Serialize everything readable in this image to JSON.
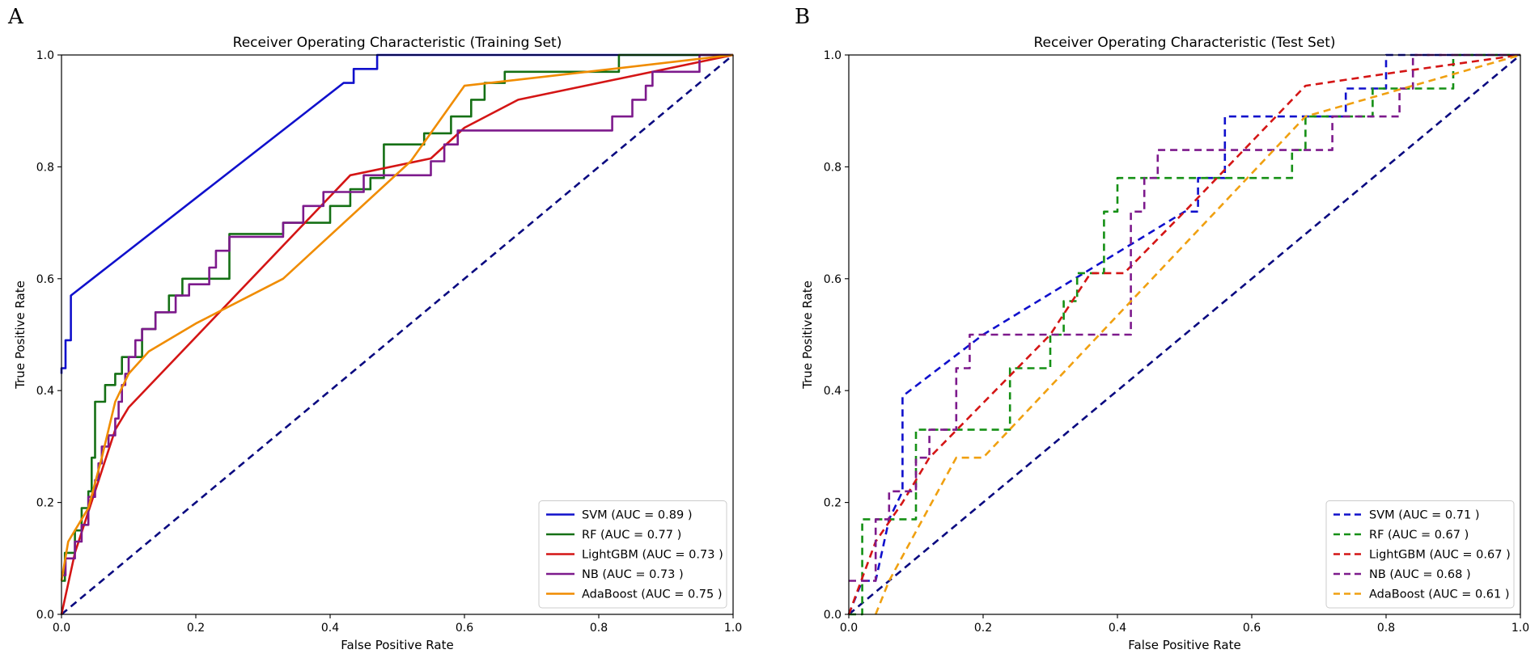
{
  "chart_data": [
    {
      "type": "line",
      "panel_label": "A",
      "title": "Receiver Operating Characteristic (Training Set)",
      "xlabel": "False Positive Rate",
      "ylabel": "True Positive Rate",
      "xlim": [
        0,
        1
      ],
      "ylim": [
        0,
        1
      ],
      "xticks": [
        "0.0",
        "0.2",
        "0.4",
        "0.6",
        "0.8",
        "1.0"
      ],
      "yticks": [
        "0.0",
        "0.2",
        "0.4",
        "0.6",
        "0.8",
        "1.0"
      ],
      "legend_position": "lower-right",
      "line_style": "solid",
      "diagonal": {
        "color": "#0a0a80",
        "style": "dashed"
      },
      "series": [
        {
          "name": "SVM",
          "label": "SVM (AUC = 0.89 )",
          "auc": 0.89,
          "color": "#1010cc",
          "points": [
            [
              0,
              0.43
            ],
            [
              0,
              0.44
            ],
            [
              0.006,
              0.44
            ],
            [
              0.006,
              0.49
            ],
            [
              0.014,
              0.49
            ],
            [
              0.014,
              0.57
            ],
            [
              0.42,
              0.95
            ],
            [
              0.435,
              0.95
            ],
            [
              0.435,
              0.975
            ],
            [
              0.47,
              0.975
            ],
            [
              0.47,
              1.0
            ],
            [
              1.0,
              1.0
            ]
          ]
        },
        {
          "name": "RF",
          "label": "RF (AUC = 0.77 )",
          "auc": 0.77,
          "color": "#157015",
          "points": [
            [
              0,
              0.06
            ],
            [
              0.005,
              0.06
            ],
            [
              0.005,
              0.11
            ],
            [
              0.02,
              0.11
            ],
            [
              0.02,
              0.15
            ],
            [
              0.03,
              0.15
            ],
            [
              0.03,
              0.19
            ],
            [
              0.04,
              0.19
            ],
            [
              0.04,
              0.22
            ],
            [
              0.045,
              0.22
            ],
            [
              0.045,
              0.28
            ],
            [
              0.05,
              0.28
            ],
            [
              0.05,
              0.38
            ],
            [
              0.065,
              0.38
            ],
            [
              0.065,
              0.41
            ],
            [
              0.08,
              0.41
            ],
            [
              0.08,
              0.43
            ],
            [
              0.09,
              0.43
            ],
            [
              0.09,
              0.46
            ],
            [
              0.12,
              0.46
            ],
            [
              0.12,
              0.51
            ],
            [
              0.14,
              0.51
            ],
            [
              0.14,
              0.54
            ],
            [
              0.16,
              0.54
            ],
            [
              0.16,
              0.57
            ],
            [
              0.18,
              0.57
            ],
            [
              0.18,
              0.6
            ],
            [
              0.25,
              0.6
            ],
            [
              0.25,
              0.68
            ],
            [
              0.33,
              0.68
            ],
            [
              0.33,
              0.7
            ],
            [
              0.4,
              0.7
            ],
            [
              0.4,
              0.73
            ],
            [
              0.43,
              0.73
            ],
            [
              0.43,
              0.76
            ],
            [
              0.46,
              0.76
            ],
            [
              0.46,
              0.78
            ],
            [
              0.48,
              0.78
            ],
            [
              0.48,
              0.84
            ],
            [
              0.54,
              0.84
            ],
            [
              0.54,
              0.86
            ],
            [
              0.58,
              0.86
            ],
            [
              0.58,
              0.89
            ],
            [
              0.61,
              0.89
            ],
            [
              0.61,
              0.92
            ],
            [
              0.63,
              0.92
            ],
            [
              0.63,
              0.95
            ],
            [
              0.66,
              0.95
            ],
            [
              0.66,
              0.97
            ],
            [
              0.83,
              0.97
            ],
            [
              0.83,
              1.0
            ],
            [
              1.0,
              1.0
            ]
          ]
        },
        {
          "name": "LightGBM",
          "label": "LightGBM (AUC = 0.73 )",
          "auc": 0.73,
          "color": "#d41515",
          "points": [
            [
              0,
              0
            ],
            [
              0.02,
              0.11
            ],
            [
              0.08,
              0.33
            ],
            [
              0.1,
              0.37
            ],
            [
              0.43,
              0.785
            ],
            [
              0.55,
              0.815
            ],
            [
              0.6,
              0.87
            ],
            [
              0.68,
              0.92
            ],
            [
              1.0,
              1.0
            ]
          ]
        },
        {
          "name": "NB",
          "label": "NB (AUC = 0.73 )",
          "auc": 0.73,
          "color": "#7d1a8c",
          "points": [
            [
              0,
              0.07
            ],
            [
              0.006,
              0.07
            ],
            [
              0.006,
              0.1
            ],
            [
              0.02,
              0.1
            ],
            [
              0.02,
              0.13
            ],
            [
              0.03,
              0.13
            ],
            [
              0.03,
              0.16
            ],
            [
              0.04,
              0.16
            ],
            [
              0.04,
              0.21
            ],
            [
              0.05,
              0.21
            ],
            [
              0.05,
              0.24
            ],
            [
              0.055,
              0.24
            ],
            [
              0.055,
              0.27
            ],
            [
              0.06,
              0.27
            ],
            [
              0.06,
              0.3
            ],
            [
              0.07,
              0.3
            ],
            [
              0.07,
              0.32
            ],
            [
              0.08,
              0.32
            ],
            [
              0.08,
              0.35
            ],
            [
              0.085,
              0.35
            ],
            [
              0.085,
              0.38
            ],
            [
              0.09,
              0.38
            ],
            [
              0.09,
              0.41
            ],
            [
              0.095,
              0.41
            ],
            [
              0.095,
              0.43
            ],
            [
              0.1,
              0.43
            ],
            [
              0.1,
              0.46
            ],
            [
              0.11,
              0.46
            ],
            [
              0.11,
              0.49
            ],
            [
              0.12,
              0.49
            ],
            [
              0.12,
              0.51
            ],
            [
              0.14,
              0.51
            ],
            [
              0.14,
              0.54
            ],
            [
              0.17,
              0.54
            ],
            [
              0.17,
              0.57
            ],
            [
              0.19,
              0.57
            ],
            [
              0.19,
              0.59
            ],
            [
              0.22,
              0.59
            ],
            [
              0.22,
              0.62
            ],
            [
              0.23,
              0.62
            ],
            [
              0.23,
              0.65
            ],
            [
              0.25,
              0.65
            ],
            [
              0.25,
              0.675
            ],
            [
              0.33,
              0.675
            ],
            [
              0.33,
              0.7
            ],
            [
              0.36,
              0.7
            ],
            [
              0.36,
              0.73
            ],
            [
              0.39,
              0.73
            ],
            [
              0.39,
              0.755
            ],
            [
              0.45,
              0.755
            ],
            [
              0.45,
              0.785
            ],
            [
              0.55,
              0.785
            ],
            [
              0.55,
              0.81
            ],
            [
              0.57,
              0.81
            ],
            [
              0.57,
              0.84
            ],
            [
              0.59,
              0.84
            ],
            [
              0.59,
              0.865
            ],
            [
              0.82,
              0.865
            ],
            [
              0.82,
              0.89
            ],
            [
              0.85,
              0.89
            ],
            [
              0.85,
              0.92
            ],
            [
              0.87,
              0.92
            ],
            [
              0.87,
              0.945
            ],
            [
              0.88,
              0.945
            ],
            [
              0.88,
              0.97
            ],
            [
              0.95,
              0.97
            ],
            [
              0.95,
              1.0
            ],
            [
              1.0,
              1.0
            ]
          ]
        },
        {
          "name": "AdaBoost",
          "label": "AdaBoost (AUC = 0.75 )",
          "auc": 0.75,
          "color": "#f08c00",
          "points": [
            [
              0,
              0.06
            ],
            [
              0.01,
              0.13
            ],
            [
              0.04,
              0.19
            ],
            [
              0.06,
              0.28
            ],
            [
              0.08,
              0.38
            ],
            [
              0.1,
              0.43
            ],
            [
              0.13,
              0.47
            ],
            [
              0.2,
              0.52
            ],
            [
              0.33,
              0.6
            ],
            [
              0.52,
              0.81
            ],
            [
              0.6,
              0.945
            ],
            [
              0.82,
              0.975
            ],
            [
              1.0,
              1.0
            ]
          ]
        }
      ]
    },
    {
      "type": "line",
      "panel_label": "B",
      "title": "Receiver Operating Characteristic (Test Set)",
      "xlabel": "False Positive Rate",
      "ylabel": "True Positive Rate",
      "xlim": [
        0,
        1
      ],
      "ylim": [
        0,
        1
      ],
      "xticks": [
        "0.0",
        "0.2",
        "0.4",
        "0.6",
        "0.8",
        "1.0"
      ],
      "yticks": [
        "0.0",
        "0.2",
        "0.4",
        "0.6",
        "0.8",
        "1.0"
      ],
      "legend_position": "lower-right",
      "line_style": "dashed",
      "diagonal": {
        "color": "#0a0a80",
        "style": "dashed"
      },
      "series": [
        {
          "name": "SVM",
          "label": "SVM (AUC = 0.71 )",
          "auc": 0.71,
          "color": "#1010cc",
          "points": [
            [
              0,
              0
            ],
            [
              0.02,
              0.06
            ],
            [
              0.04,
              0.06
            ],
            [
              0.06,
              0.17
            ],
            [
              0.08,
              0.22
            ],
            [
              0.08,
              0.39
            ],
            [
              0.2,
              0.5
            ],
            [
              0.5,
              0.72
            ],
            [
              0.52,
              0.72
            ],
            [
              0.52,
              0.78
            ],
            [
              0.56,
              0.78
            ],
            [
              0.56,
              0.89
            ],
            [
              0.74,
              0.89
            ],
            [
              0.74,
              0.94
            ],
            [
              0.8,
              0.94
            ],
            [
              0.8,
              1.0
            ],
            [
              1.0,
              1.0
            ]
          ]
        },
        {
          "name": "RF",
          "label": "RF (AUC = 0.67 )",
          "auc": 0.67,
          "color": "#159015",
          "points": [
            [
              0,
              0
            ],
            [
              0.02,
              0
            ],
            [
              0.02,
              0.17
            ],
            [
              0.1,
              0.17
            ],
            [
              0.1,
              0.33
            ],
            [
              0.24,
              0.33
            ],
            [
              0.24,
              0.44
            ],
            [
              0.3,
              0.44
            ],
            [
              0.3,
              0.5
            ],
            [
              0.32,
              0.5
            ],
            [
              0.32,
              0.56
            ],
            [
              0.34,
              0.56
            ],
            [
              0.34,
              0.61
            ],
            [
              0.38,
              0.61
            ],
            [
              0.38,
              0.72
            ],
            [
              0.4,
              0.72
            ],
            [
              0.4,
              0.78
            ],
            [
              0.66,
              0.78
            ],
            [
              0.66,
              0.83
            ],
            [
              0.68,
              0.83
            ],
            [
              0.68,
              0.89
            ],
            [
              0.78,
              0.89
            ],
            [
              0.78,
              0.94
            ],
            [
              0.9,
              0.94
            ],
            [
              0.9,
              1.0
            ],
            [
              1.0,
              1.0
            ]
          ]
        },
        {
          "name": "LightGBM",
          "label": "LightGBM (AUC = 0.67 )",
          "auc": 0.67,
          "color": "#d41515",
          "points": [
            [
              0,
              0
            ],
            [
              0.04,
              0.13
            ],
            [
              0.08,
              0.2
            ],
            [
              0.12,
              0.28
            ],
            [
              0.3,
              0.5
            ],
            [
              0.36,
              0.61
            ],
            [
              0.41,
              0.61
            ],
            [
              0.5,
              0.72
            ],
            [
              0.68,
              0.945
            ],
            [
              0.82,
              0.97
            ],
            [
              1.0,
              1.0
            ]
          ]
        },
        {
          "name": "NB",
          "label": "NB (AUC = 0.68 )",
          "auc": 0.68,
          "color": "#7d1a8c",
          "points": [
            [
              0,
              0.06
            ],
            [
              0.04,
              0.06
            ],
            [
              0.04,
              0.17
            ],
            [
              0.06,
              0.17
            ],
            [
              0.06,
              0.22
            ],
            [
              0.1,
              0.22
            ],
            [
              0.1,
              0.28
            ],
            [
              0.12,
              0.28
            ],
            [
              0.12,
              0.33
            ],
            [
              0.16,
              0.33
            ],
            [
              0.16,
              0.44
            ],
            [
              0.18,
              0.44
            ],
            [
              0.18,
              0.5
            ],
            [
              0.42,
              0.5
            ],
            [
              0.42,
              0.72
            ],
            [
              0.44,
              0.72
            ],
            [
              0.44,
              0.78
            ],
            [
              0.46,
              0.78
            ],
            [
              0.46,
              0.83
            ],
            [
              0.72,
              0.83
            ],
            [
              0.72,
              0.89
            ],
            [
              0.82,
              0.89
            ],
            [
              0.82,
              0.94
            ],
            [
              0.84,
              0.94
            ],
            [
              0.84,
              1.0
            ],
            [
              1.0,
              1.0
            ]
          ]
        },
        {
          "name": "AdaBoost",
          "label": "AdaBoost (AUC = 0.61 )",
          "auc": 0.61,
          "color": "#f0a010",
          "points": [
            [
              0.04,
              0
            ],
            [
              0.06,
              0.06
            ],
            [
              0.16,
              0.28
            ],
            [
              0.2,
              0.28
            ],
            [
              0.68,
              0.89
            ],
            [
              1.0,
              1.0
            ]
          ]
        }
      ]
    }
  ]
}
